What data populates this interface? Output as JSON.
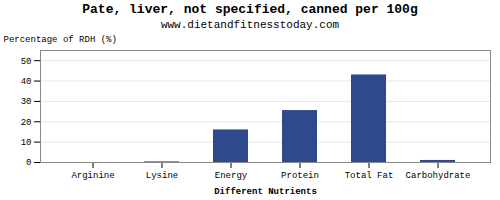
{
  "chart_data": {
    "type": "bar",
    "title": "Pate, liver, not specified, canned per 100g",
    "subtitle": "www.dietandfitnesstoday.com",
    "xlabel": "Different Nutrients",
    "ylabel": "Percentage of RDH (%)",
    "categories": [
      "Arginine",
      "Lysine",
      "Energy",
      "Protein",
      "Total Fat",
      "Carbohydrate"
    ],
    "values": [
      0.0,
      0.3,
      16.0,
      25.5,
      43.0,
      1.0
    ],
    "color": "#2e4a8c",
    "ylim": [
      0,
      55
    ],
    "yticks": [
      0,
      10,
      20,
      30,
      40,
      50
    ],
    "grid": true
  }
}
